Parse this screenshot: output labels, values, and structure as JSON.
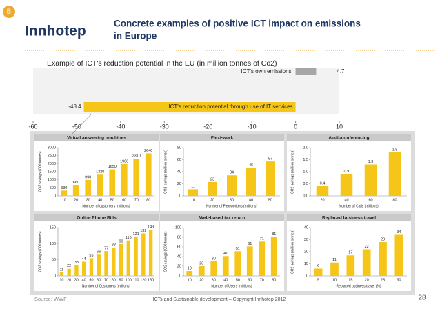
{
  "header": {
    "badge": "B",
    "logo": "Innhotep",
    "title": [
      "Concrete examples of positive ICT impact on emissions",
      "in Europe"
    ]
  },
  "chart_data": [
    {
      "type": "bar",
      "orientation": "horizontal",
      "title": "Example of ICT's reduction potential in the EU (in million tonnes of Co2)",
      "categories": [
        "ICT's own emissions",
        "ICT's reduction potential through use of IT services"
      ],
      "values": [
        4.7,
        -48.4
      ],
      "colors": [
        "#a6a6a6",
        "#f5c518"
      ],
      "xlim": [
        -60,
        10
      ],
      "xticks": [
        -60,
        -50,
        -40,
        -30,
        -20,
        -10,
        0,
        10
      ]
    },
    {
      "type": "bar",
      "title": "Virtual answering machines",
      "categories": [
        10,
        20,
        30,
        40,
        50,
        60,
        70,
        80
      ],
      "values": [
        330,
        660,
        990,
        1320,
        1650,
        1980,
        2310,
        2640
      ],
      "color": "#f5c518",
      "ylim": [
        0,
        3000
      ],
      "yticks": [
        0,
        500,
        1000,
        1500,
        2000,
        2500,
        3000
      ],
      "xlabel": "Number of customers (millions)",
      "ylabel": "CO2 savings ('000 tonnes)"
    },
    {
      "type": "bar",
      "title": "Flexi-work",
      "categories": [
        10,
        20,
        30,
        40,
        50
      ],
      "values": [
        11,
        23,
        34,
        46,
        57
      ],
      "color": "#f5c518",
      "ylim": [
        0,
        80
      ],
      "yticks": [
        0,
        20,
        40,
        60,
        80
      ],
      "xlabel": "Number of Flexiworkers (millions)",
      "ylabel": "CO2 savings (million tonnes)"
    },
    {
      "type": "bar",
      "title": "Audioconferencing",
      "categories": [
        20,
        40,
        60,
        80
      ],
      "values": [
        0.4,
        0.9,
        1.3,
        1.8
      ],
      "color": "#f5c518",
      "ylim": [
        0,
        2
      ],
      "yticks": [
        {
          "value": 0,
          "label": "0.0"
        },
        0.5,
        {
          "value": 1,
          "label": "1.0"
        },
        1.5,
        {
          "value": 2,
          "label": "2.0"
        }
      ],
      "xlabel": "Number of Calls (millions)",
      "ylabel": "CO2 savings (million tonnes)"
    },
    {
      "type": "bar",
      "title": "Online Phone Bills",
      "categories": [
        10,
        20,
        30,
        40,
        50,
        60,
        70,
        80,
        90,
        100,
        110,
        120,
        130
      ],
      "values": [
        11,
        22,
        33,
        44,
        55,
        66,
        77,
        88,
        99,
        110,
        121,
        132,
        143
      ],
      "color": "#f5c518",
      "ylim": [
        0,
        150
      ],
      "yticks": [
        0,
        50,
        100,
        150
      ],
      "xlabel": "Number of Customers (millions)",
      "ylabel": "CO2 savings ('000 tonnes)"
    },
    {
      "type": "bar",
      "title": "Web-based tax return",
      "categories": [
        10,
        20,
        30,
        40,
        50,
        60,
        70,
        80
      ],
      "values": [
        10,
        20,
        30,
        41,
        51,
        61,
        71,
        81
      ],
      "color": "#f5c518",
      "ylim": [
        0,
        100
      ],
      "yticks": [
        0,
        20,
        40,
        60,
        80,
        100
      ],
      "xlabel": "Number of Users (millions)",
      "ylabel": "CO2 savings ('000 tonnes)"
    },
    {
      "type": "bar",
      "title": "Replaced business travel",
      "categories": [
        5,
        10,
        15,
        20,
        25,
        30
      ],
      "values": [
        6,
        11,
        17,
        22,
        28,
        34
      ],
      "color": "#f5c518",
      "ylim": [
        0,
        40
      ],
      "yticks": [
        0,
        10,
        20,
        30,
        40
      ],
      "xlabel": "Replaced business travel (%)",
      "ylabel": "CO2 savings (million tonnes)"
    }
  ],
  "footer": {
    "source": "Source: WWF",
    "copyright": "ICTs and Sustainable development – Copyright Innhotep 2012",
    "page": 28
  }
}
